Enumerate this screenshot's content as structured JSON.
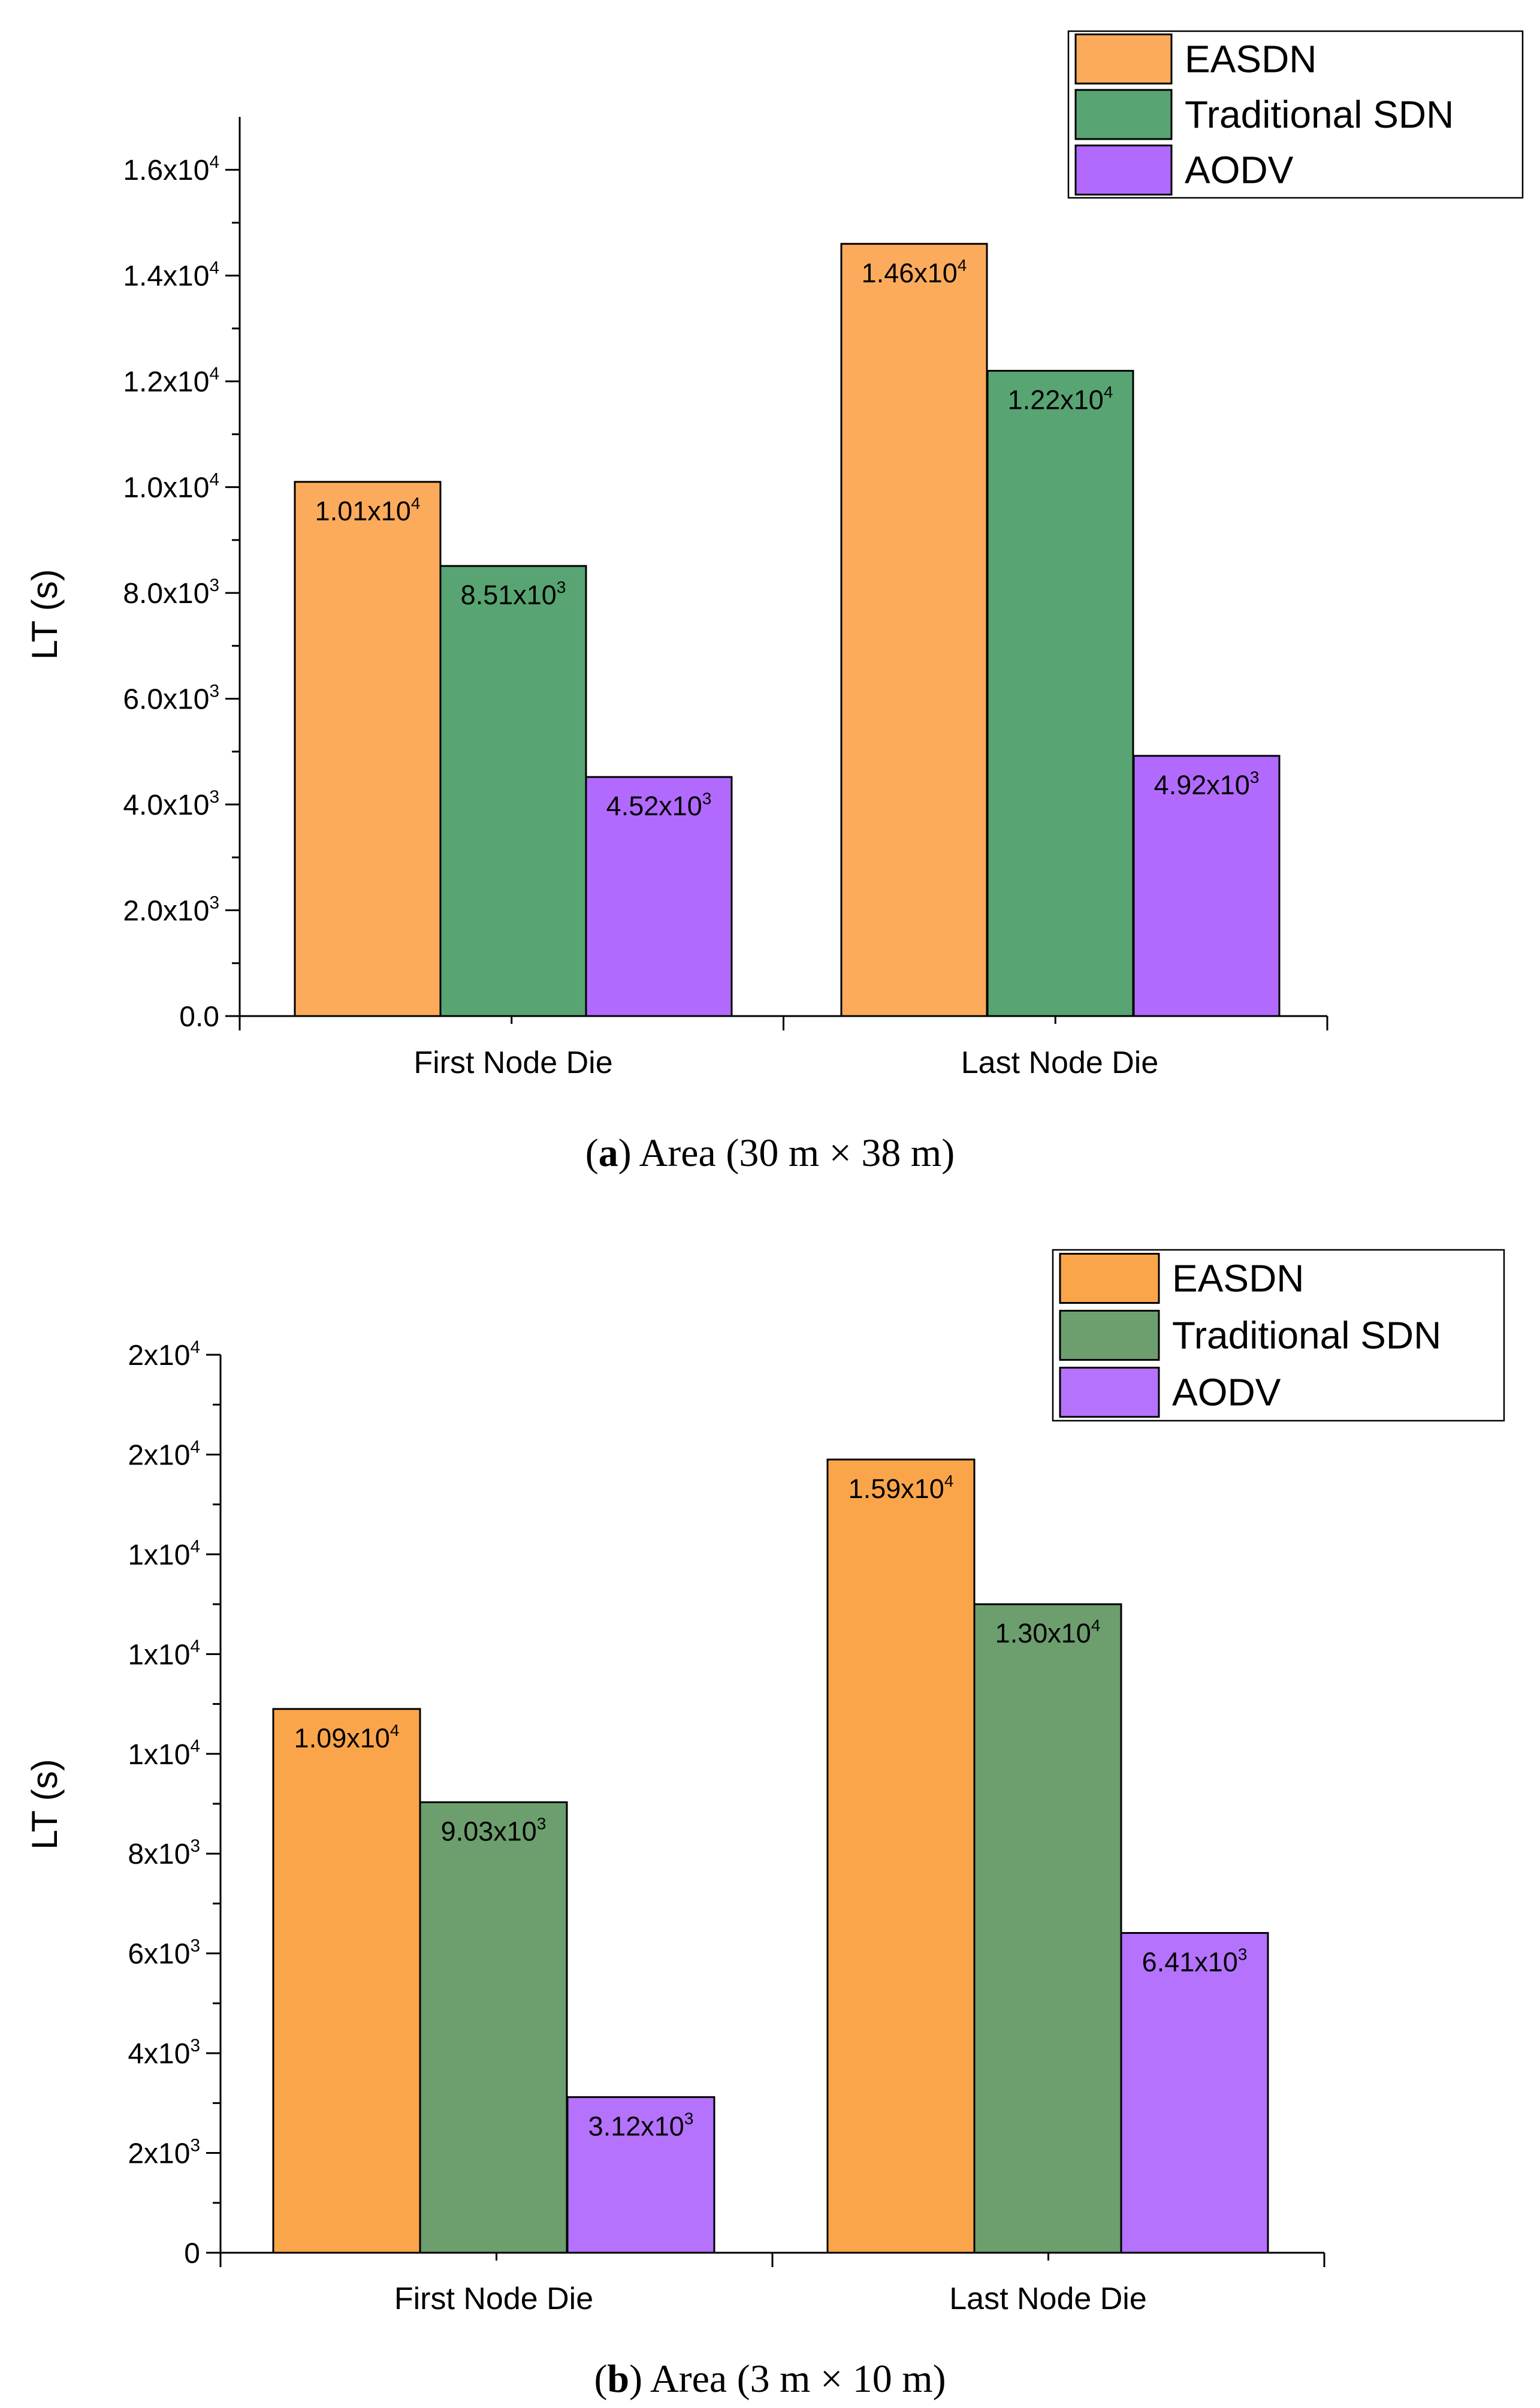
{
  "chart_data": [
    {
      "type": "bar",
      "ylabel": "LT (s)",
      "categories": [
        "First Node Die",
        "Last Node Die"
      ],
      "series": [
        {
          "name": "EASDN",
          "values": [
            10100,
            14600
          ],
          "labels": [
            "1.01x10",
            "1.46x10"
          ],
          "exponents": [
            "4",
            "4"
          ],
          "color": "#FCAB5C"
        },
        {
          "name": "Traditional SDN",
          "values": [
            8510,
            12200
          ],
          "labels": [
            "8.51x10",
            "1.22x10"
          ],
          "exponents": [
            "3",
            "4"
          ],
          "color": "#58A472"
        },
        {
          "name": "AODV",
          "values": [
            4520,
            4920
          ],
          "labels": [
            "4.52x10",
            "4.92x10"
          ],
          "exponents": [
            "3",
            "3"
          ],
          "color": "#B26AFE"
        }
      ],
      "ylim": [
        0,
        17000
      ],
      "yticks": [
        {
          "value": 0,
          "label": "0.0",
          "exp": ""
        },
        {
          "value": 2000,
          "label": "2.0x10",
          "exp": "3"
        },
        {
          "value": 4000,
          "label": "4.0x10",
          "exp": "3"
        },
        {
          "value": 6000,
          "label": "6.0x10",
          "exp": "3"
        },
        {
          "value": 8000,
          "label": "8.0x10",
          "exp": "3"
        },
        {
          "value": 10000,
          "label": "1.0x10",
          "exp": "4"
        },
        {
          "value": 12000,
          "label": "1.2x10",
          "exp": "4"
        },
        {
          "value": 14000,
          "label": "1.4x10",
          "exp": "4"
        },
        {
          "value": 16000,
          "label": "1.6x10",
          "exp": "4"
        }
      ],
      "caption": {
        "letter": "a",
        "text": ") Area (30 m × 38 m)"
      },
      "legend_position": "top-right"
    },
    {
      "type": "bar",
      "ylabel": "LT (s)",
      "categories": [
        "First Node Die",
        "Last Node Die"
      ],
      "series": [
        {
          "name": "EASDN",
          "values": [
            10900,
            15900
          ],
          "labels": [
            "1.09x10",
            "1.59x10"
          ],
          "exponents": [
            "4",
            "4"
          ],
          "color": "#FBA54B"
        },
        {
          "name": "Traditional SDN",
          "values": [
            9030,
            13000
          ],
          "labels": [
            "9.03x10",
            "1.30x10"
          ],
          "exponents": [
            "3",
            "4"
          ],
          "color": "#6C9E6E"
        },
        {
          "name": "AODV",
          "values": [
            3120,
            6410
          ],
          "labels": [
            "3.12x10",
            "6.41x10"
          ],
          "exponents": [
            "3",
            "3"
          ],
          "color": "#B572FC"
        }
      ],
      "ylim": [
        0,
        18000
      ],
      "yticks": [
        {
          "value": 0,
          "label": "0",
          "exp": ""
        },
        {
          "value": 2000,
          "label": "2x10",
          "exp": "3"
        },
        {
          "value": 4000,
          "label": "4x10",
          "exp": "3"
        },
        {
          "value": 6000,
          "label": "6x10",
          "exp": "3"
        },
        {
          "value": 8000,
          "label": "8x10",
          "exp": "3"
        },
        {
          "value": 10000,
          "label": "1x10",
          "exp": "4"
        },
        {
          "value": 12000,
          "label": "1x10",
          "exp": "4"
        },
        {
          "value": 14000,
          "label": "1x10",
          "exp": "4"
        },
        {
          "value": 16000,
          "label": "2x10",
          "exp": "4"
        },
        {
          "value": 18000,
          "label": "2x10",
          "exp": "4"
        }
      ],
      "caption": {
        "letter": "b",
        "text": ") Area (3 m × 10 m)"
      },
      "legend_position": "top-right"
    }
  ]
}
